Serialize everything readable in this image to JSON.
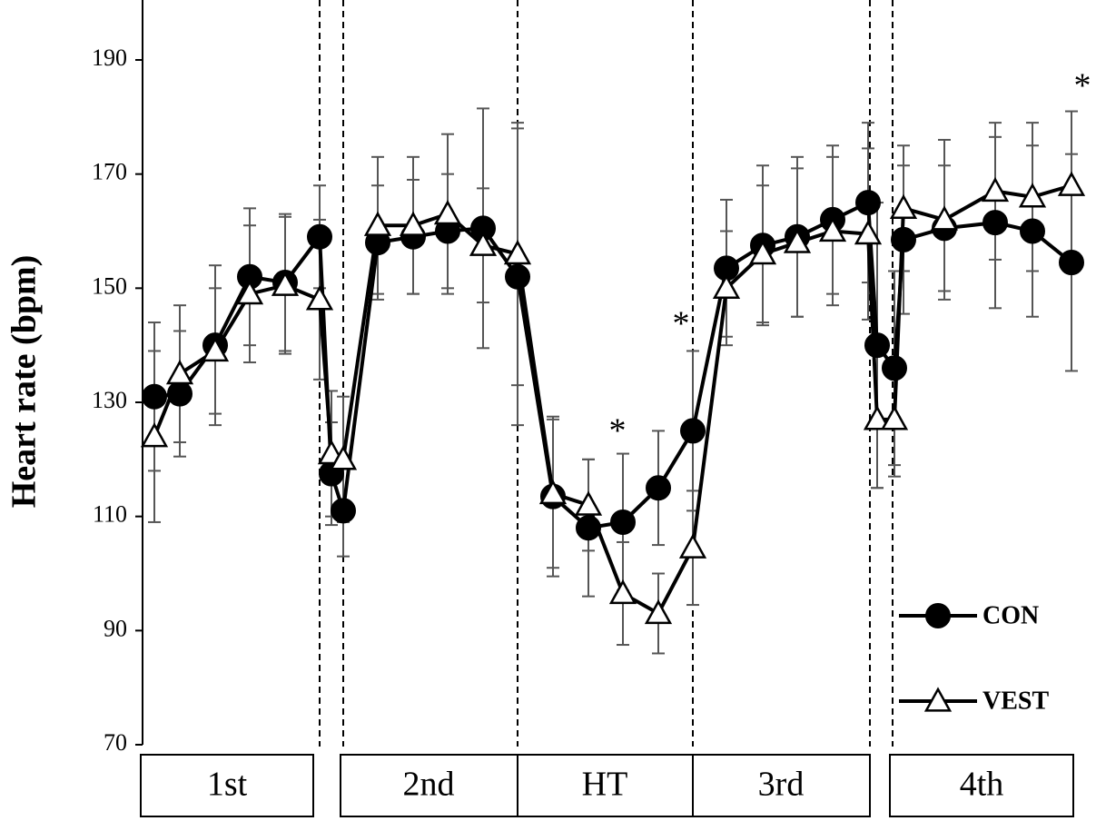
{
  "chart_data": {
    "type": "line",
    "y_label": "Heart rate (bpm)",
    "phases": [
      "1st",
      "2nd",
      "HT",
      "3rd",
      "4th"
    ],
    "categories": [
      null,
      null,
      null,
      null,
      null,
      null,
      null,
      null,
      null,
      null,
      null,
      null,
      null,
      null,
      null,
      null,
      null,
      null,
      null,
      null,
      null,
      null,
      null,
      null,
      null,
      null,
      null,
      null,
      null,
      null
    ],
    "series": [
      {
        "name": "CON",
        "color": "#000000",
        "marker": "circle",
        "values": [
          131,
          131.5,
          140,
          152,
          151,
          159,
          117.5,
          111,
          158,
          159,
          160,
          160.5,
          152,
          113.5,
          108,
          109,
          115,
          125,
          153.5,
          157.5,
          159,
          162,
          165,
          140,
          136,
          158.5,
          160.5,
          161.5,
          160,
          154.5
        ],
        "errors": [
          13,
          11,
          14,
          12,
          12,
          9,
          9,
          8,
          10,
          10,
          10,
          21,
          26,
          14,
          12,
          12,
          10,
          14,
          12,
          14,
          14,
          13,
          14,
          25,
          17,
          13,
          11,
          15,
          15,
          19
        ]
      },
      {
        "name": "VEST",
        "color": "#000000",
        "marker": "triangle",
        "values": [
          124,
          135,
          139,
          149,
          150.5,
          148,
          121,
          120,
          161,
          161,
          163,
          157.5,
          156,
          114,
          112,
          96.5,
          93,
          104.5,
          150,
          156,
          158,
          160,
          159.5,
          127,
          127,
          164,
          162,
          167,
          166,
          168
        ],
        "errors": [
          15,
          12,
          11,
          12,
          12,
          14,
          11,
          11,
          12,
          12,
          14,
          10,
          23,
          13,
          8,
          9,
          7,
          10,
          10,
          12,
          13,
          13,
          15,
          12,
          10,
          11,
          14,
          12,
          13,
          13
        ]
      }
    ],
    "annotations": [
      "*",
      "*",
      "*"
    ],
    "ylim": [
      70,
      200
    ],
    "yticks": [
      70,
      90,
      110,
      130,
      150,
      170,
      190
    ]
  }
}
